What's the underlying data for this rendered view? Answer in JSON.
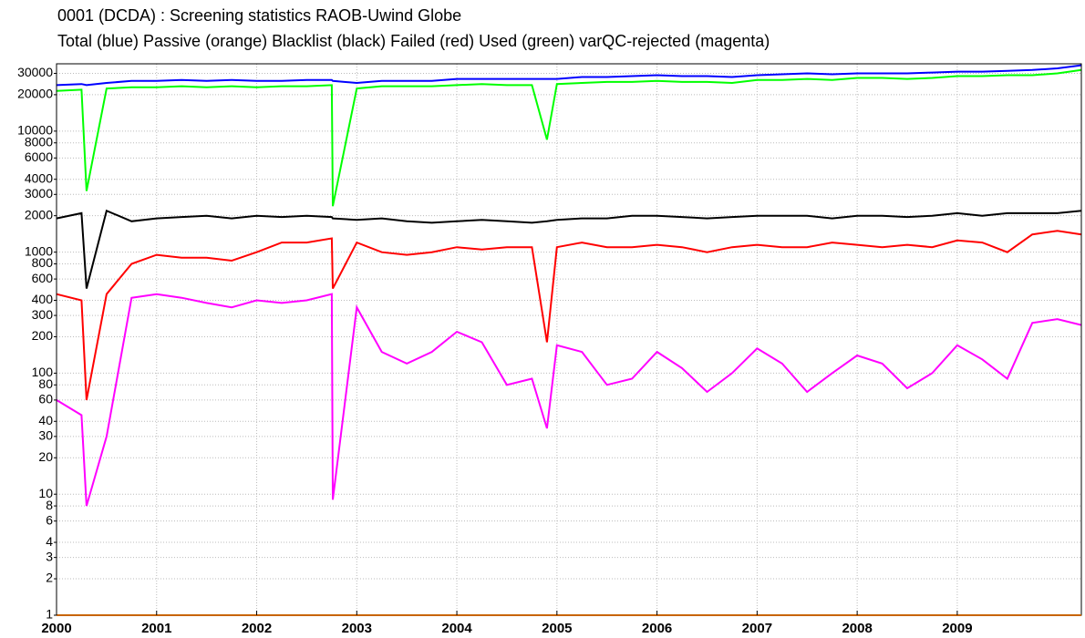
{
  "chart_data": {
    "type": "line",
    "title": "0001 (DCDA)  : Screening statistics  RAOB-Uwind  Globe",
    "subtitle": "Total (blue) Passive (orange) Blacklist (black) Failed (red) Used (green) varQC-rejected (magenta)",
    "log_scale": true,
    "grid": true,
    "x": [
      2000.0,
      2000.25,
      2000.3,
      2000.5,
      2000.75,
      2001.0,
      2001.25,
      2001.5,
      2001.75,
      2002.0,
      2002.25,
      2002.5,
      2002.75,
      2002.76,
      2003.0,
      2003.25,
      2003.5,
      2003.75,
      2004.0,
      2004.25,
      2004.5,
      2004.75,
      2004.9,
      2005.0,
      2005.25,
      2005.5,
      2005.75,
      2006.0,
      2006.25,
      2006.5,
      2006.75,
      2007.0,
      2007.25,
      2007.5,
      2007.75,
      2008.0,
      2008.25,
      2008.5,
      2008.75,
      2009.0,
      2009.25,
      2009.5,
      2009.75,
      2010.0,
      2010.24
    ],
    "xlim": [
      2000,
      2010.24
    ],
    "xticks": [
      2000,
      2001,
      2002,
      2003,
      2004,
      2005,
      2006,
      2007,
      2008,
      2009
    ],
    "ylim": [
      1,
      36000
    ],
    "yticks": [
      1,
      2,
      3,
      4,
      6,
      8,
      10,
      20,
      30,
      40,
      60,
      80,
      100,
      200,
      300,
      400,
      600,
      800,
      1000,
      2000,
      3000,
      4000,
      6000,
      8000,
      10000,
      20000,
      30000
    ],
    "series": [
      {
        "name": "Total",
        "color": "#0000ff",
        "values": [
          24000,
          24500,
          24000,
          25000,
          26000,
          26000,
          26500,
          26000,
          26500,
          26000,
          26000,
          26500,
          26500,
          26000,
          25000,
          26000,
          26000,
          26000,
          27000,
          27000,
          27000,
          27000,
          27000,
          27000,
          28000,
          28000,
          28500,
          29000,
          28500,
          28500,
          28000,
          29000,
          29500,
          30000,
          29500,
          30000,
          30000,
          30000,
          30500,
          31000,
          31000,
          31500,
          32000,
          33000,
          35000
        ]
      },
      {
        "name": "Used",
        "color": "#00ff00",
        "values": [
          21500,
          22000,
          3200,
          22500,
          23000,
          23000,
          23500,
          23000,
          23500,
          23000,
          23500,
          23500,
          24000,
          2400,
          22500,
          23500,
          23500,
          23500,
          24000,
          24500,
          24000,
          24000,
          8500,
          24500,
          25000,
          25500,
          25500,
          26000,
          25500,
          25500,
          25000,
          26500,
          26500,
          27000,
          26500,
          27500,
          27500,
          27000,
          27500,
          28500,
          28500,
          29000,
          29000,
          30000,
          32000
        ]
      },
      {
        "name": "Blacklist",
        "color": "#000000",
        "values": [
          1900,
          2100,
          500,
          2200,
          1800,
          1900,
          1950,
          2000,
          1900,
          2000,
          1950,
          2000,
          1950,
          1900,
          1850,
          1900,
          1800,
          1750,
          1800,
          1850,
          1800,
          1750,
          1800,
          1850,
          1900,
          1900,
          2000,
          2000,
          1950,
          1900,
          1950,
          2000,
          2000,
          2000,
          1900,
          2000,
          2000,
          1950,
          2000,
          2100,
          2000,
          2100,
          2100,
          2100,
          2200
        ]
      },
      {
        "name": "Failed",
        "color": "#ff0000",
        "values": [
          450,
          400,
          60,
          450,
          800,
          950,
          900,
          900,
          850,
          1000,
          1200,
          1200,
          1300,
          500,
          1200,
          1000,
          950,
          1000,
          1100,
          1050,
          1100,
          1100,
          180,
          1100,
          1200,
          1100,
          1100,
          1150,
          1100,
          1000,
          1100,
          1150,
          1100,
          1100,
          1200,
          1150,
          1100,
          1150,
          1100,
          1250,
          1200,
          1000,
          1400,
          1500,
          1400
        ]
      },
      {
        "name": "varQC-rejected",
        "color": "#ff00ff",
        "values": [
          60,
          45,
          8,
          30,
          420,
          450,
          420,
          380,
          350,
          400,
          380,
          400,
          450,
          9,
          350,
          150,
          120,
          150,
          220,
          180,
          80,
          90,
          35,
          170,
          150,
          80,
          90,
          150,
          110,
          70,
          100,
          160,
          120,
          70,
          100,
          140,
          120,
          75,
          100,
          170,
          130,
          90,
          260,
          280,
          250
        ]
      }
    ]
  }
}
